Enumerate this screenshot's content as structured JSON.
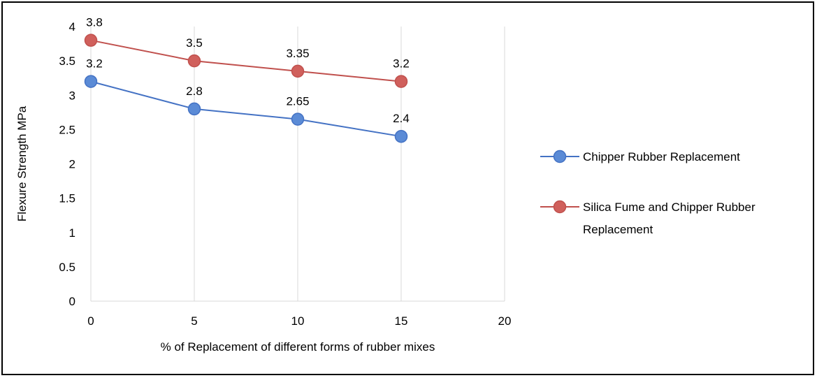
{
  "chart_data": {
    "type": "line",
    "title": "",
    "xlabel": "% of Replacement of different forms of rubber mixes",
    "ylabel": "Flexure Strength MPa",
    "xlim": [
      0,
      20
    ],
    "ylim": [
      0,
      4
    ],
    "x_ticks": [
      0,
      5,
      10,
      15,
      20
    ],
    "y_ticks": [
      0,
      0.5,
      1,
      1.5,
      2,
      2.5,
      3,
      3.5,
      4
    ],
    "x_tick_labels": [
      "0",
      "5",
      "10",
      "15",
      "20"
    ],
    "y_tick_labels": [
      "0",
      "0.5",
      "1",
      "1.5",
      "2",
      "2.5",
      "3",
      "3.5",
      "4"
    ],
    "grid": "vertical major gridlines",
    "legend_position": "right",
    "series": [
      {
        "name": "Chipper Rubber Replacement",
        "legend_lines": [
          "Chipper Rubber Replacement"
        ],
        "color": "#4472C4",
        "marker_fill": "#5B8BD6",
        "x": [
          0,
          5,
          10,
          15
        ],
        "y": [
          3.2,
          2.8,
          2.65,
          2.4
        ],
        "labels": [
          "3.2",
          "2.8",
          "2.65",
          "2.4"
        ]
      },
      {
        "name": "Silica Fume and Chipper Rubber Replacement",
        "legend_lines": [
          "Silica Fume and Chipper Rubber",
          "Replacement"
        ],
        "color": "#C0504D",
        "marker_fill": "#D0605C",
        "x": [
          0,
          5,
          10,
          15
        ],
        "y": [
          3.8,
          3.5,
          3.35,
          3.2
        ],
        "labels": [
          "3.8",
          "3.5",
          "3.35",
          "3.2"
        ]
      }
    ]
  }
}
